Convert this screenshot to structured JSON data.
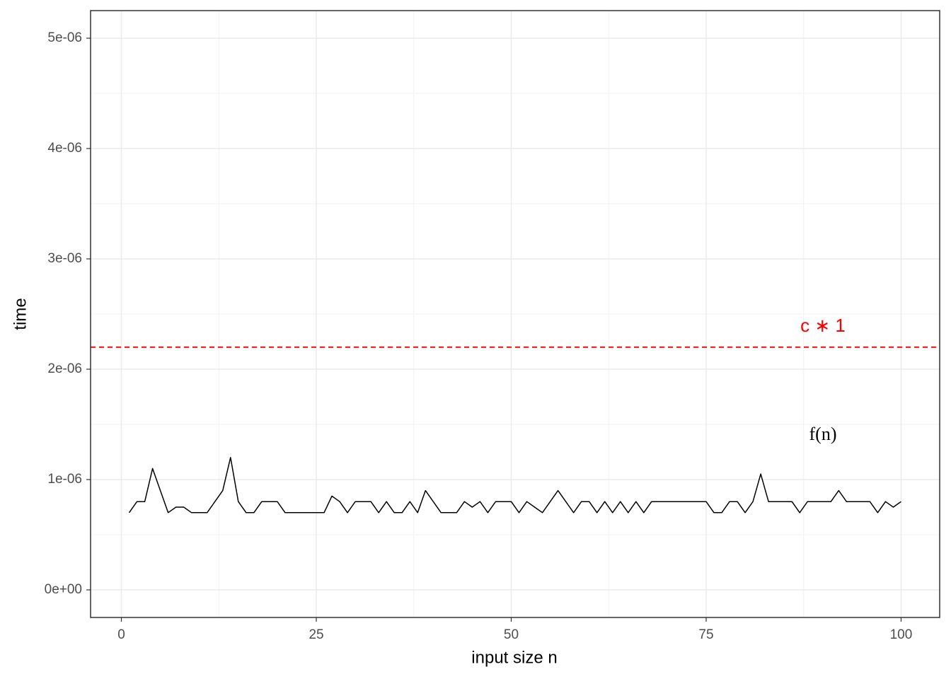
{
  "chart_data": {
    "type": "line",
    "xlabel": "input size n",
    "ylabel": "time",
    "x": [
      1,
      2,
      3,
      4,
      5,
      6,
      7,
      8,
      9,
      10,
      11,
      12,
      13,
      14,
      15,
      16,
      17,
      18,
      19,
      20,
      21,
      22,
      23,
      24,
      25,
      26,
      27,
      28,
      29,
      30,
      31,
      32,
      33,
      34,
      35,
      36,
      37,
      38,
      39,
      40,
      41,
      42,
      43,
      44,
      45,
      46,
      47,
      48,
      49,
      50,
      51,
      52,
      53,
      54,
      55,
      56,
      57,
      58,
      59,
      60,
      61,
      62,
      63,
      64,
      65,
      66,
      67,
      68,
      69,
      70,
      71,
      72,
      73,
      74,
      75,
      76,
      77,
      78,
      79,
      80,
      81,
      82,
      83,
      84,
      85,
      86,
      87,
      88,
      89,
      90,
      91,
      92,
      93,
      94,
      95,
      96,
      97,
      98,
      99,
      100
    ],
    "series": [
      {
        "color": "#000000",
        "values": [
          7e-07,
          8e-07,
          8e-07,
          1.1e-06,
          9e-07,
          7e-07,
          7.5e-07,
          7.5e-07,
          7e-07,
          7e-07,
          7e-07,
          8e-07,
          9e-07,
          1.2e-06,
          8e-07,
          7e-07,
          7e-07,
          8e-07,
          8e-07,
          8e-07,
          7e-07,
          7e-07,
          7e-07,
          7e-07,
          7e-07,
          7e-07,
          8.5e-07,
          8e-07,
          7e-07,
          8e-07,
          8e-07,
          8e-07,
          7e-07,
          8e-07,
          7e-07,
          7e-07,
          8e-07,
          7e-07,
          9e-07,
          8e-07,
          7e-07,
          7e-07,
          7e-07,
          8e-07,
          7.5e-07,
          8e-07,
          7e-07,
          8e-07,
          8e-07,
          8e-07,
          7e-07,
          8e-07,
          7.5e-07,
          7e-07,
          8e-07,
          9e-07,
          8e-07,
          7e-07,
          8e-07,
          8e-07,
          7e-07,
          8e-07,
          7e-07,
          8e-07,
          7e-07,
          8e-07,
          7e-07,
          8e-07,
          8e-07,
          8e-07,
          8e-07,
          8e-07,
          8e-07,
          8e-07,
          8e-07,
          7e-07,
          7e-07,
          8e-07,
          8e-07,
          7e-07,
          8e-07,
          1.05e-06,
          8e-07,
          8e-07,
          8e-07,
          8e-07,
          7e-07,
          8e-07,
          8e-07,
          8e-07,
          8e-07,
          9e-07,
          8e-07,
          8e-07,
          8e-07,
          8e-07,
          7e-07,
          8e-07,
          7.5e-07,
          8e-07
        ]
      }
    ],
    "hline": {
      "y": 2.2e-06,
      "color": "red"
    },
    "annotations": [
      {
        "text": "c ∗ 1",
        "color": "red"
      },
      {
        "text": "f(n)",
        "color": "#000000"
      }
    ],
    "xlim": [
      -3.95,
      104.95
    ],
    "xticks": [
      0,
      25,
      50,
      75,
      100
    ],
    "xminorticks": [
      12.5,
      37.5,
      62.5,
      87.5
    ],
    "ylim": [
      -2.5e-07,
      5.25e-06
    ],
    "yticks": [
      {
        "value": 0,
        "label": "0e+00"
      },
      {
        "value": 1e-06,
        "label": "1e-06"
      },
      {
        "value": 2e-06,
        "label": "2e-06"
      },
      {
        "value": 3e-06,
        "label": "3e-06"
      },
      {
        "value": 4e-06,
        "label": "4e-06"
      },
      {
        "value": 5e-06,
        "label": "5e-06"
      }
    ],
    "yminorticks": [
      5e-07,
      1.5e-06,
      2.5e-06,
      3.5e-06,
      4.5e-06
    ],
    "grid": true
  }
}
